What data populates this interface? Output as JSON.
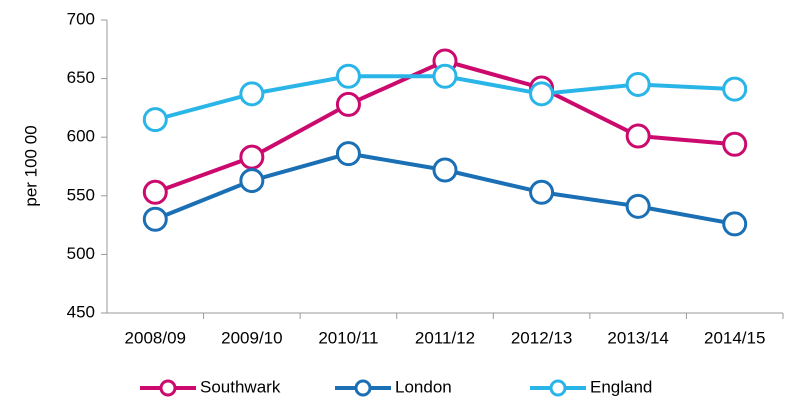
{
  "chart_data": {
    "type": "line",
    "y_label": "per 100 00",
    "categories": [
      "2008/09",
      "2009/10",
      "2010/11",
      "2011/12",
      "2012/13",
      "2013/14",
      "2014/15"
    ],
    "series": [
      {
        "name": "Southwark",
        "color": "#cc0a6e",
        "values": [
          553,
          583,
          628,
          665,
          642,
          601,
          594
        ]
      },
      {
        "name": "London",
        "color": "#1a6fb5",
        "values": [
          530,
          563,
          586,
          572,
          553,
          541,
          526
        ]
      },
      {
        "name": "England",
        "color": "#29b5e8",
        "values": [
          615,
          637,
          652,
          652,
          637,
          645,
          641
        ]
      }
    ],
    "ylim": [
      450,
      700
    ],
    "yticks": [
      450,
      500,
      550,
      600,
      650,
      700
    ],
    "grid": false,
    "legend": "bottom"
  }
}
